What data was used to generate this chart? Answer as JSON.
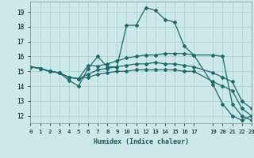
{
  "xlabel": "Humidex (Indice chaleur)",
  "bg_color": "#cce8e8",
  "grid_color": "#aacccc",
  "line_color": "#1a6b6b",
  "lines": [
    {
      "x": [
        0,
        1,
        2,
        3,
        4,
        5,
        6,
        7,
        8,
        9,
        10,
        11,
        12,
        13,
        14,
        15,
        16,
        17,
        19,
        20,
        21,
        22,
        23
      ],
      "y": [
        15.3,
        15.2,
        15.0,
        14.9,
        14.4,
        14.0,
        15.2,
        16.0,
        15.3,
        15.3,
        18.1,
        18.1,
        19.3,
        19.1,
        18.5,
        18.3,
        16.7,
        16.1,
        14.1,
        12.8,
        12.0,
        11.7,
        12.0
      ]
    },
    {
      "x": [
        0,
        1,
        2,
        3,
        4,
        5,
        6,
        7,
        8,
        9,
        10,
        11,
        12,
        13,
        14,
        15,
        16,
        17,
        19,
        20,
        21,
        22,
        23
      ],
      "y": [
        15.3,
        15.2,
        15.0,
        14.9,
        14.6,
        14.5,
        15.4,
        15.35,
        15.5,
        15.7,
        15.9,
        16.0,
        16.1,
        16.1,
        16.2,
        16.2,
        16.2,
        16.1,
        16.1,
        16.0,
        12.8,
        12.0,
        11.7
      ]
    },
    {
      "x": [
        0,
        1,
        2,
        3,
        4,
        5,
        6,
        7,
        8,
        9,
        10,
        11,
        12,
        13,
        14,
        15,
        16,
        17,
        19,
        20,
        21,
        22,
        23
      ],
      "y": [
        15.3,
        15.2,
        15.0,
        14.9,
        14.6,
        14.5,
        14.8,
        15.1,
        15.2,
        15.3,
        15.4,
        15.5,
        15.5,
        15.6,
        15.5,
        15.5,
        15.4,
        15.3,
        14.9,
        14.6,
        14.3,
        13.0,
        12.5
      ]
    },
    {
      "x": [
        0,
        1,
        2,
        3,
        4,
        5,
        6,
        7,
        8,
        9,
        10,
        11,
        12,
        13,
        14,
        15,
        16,
        17,
        19,
        20,
        21,
        22,
        23
      ],
      "y": [
        15.3,
        15.2,
        15.0,
        14.9,
        14.6,
        14.5,
        14.6,
        14.8,
        14.9,
        15.0,
        15.0,
        15.1,
        15.1,
        15.1,
        15.1,
        15.1,
        15.0,
        15.0,
        14.3,
        14.0,
        13.7,
        12.5,
        12.0
      ]
    }
  ],
  "xlim": [
    0,
    23
  ],
  "ylim": [
    11.5,
    19.7
  ],
  "xticks": [
    0,
    1,
    2,
    3,
    4,
    5,
    6,
    7,
    8,
    9,
    10,
    11,
    12,
    13,
    14,
    15,
    16,
    17,
    19,
    20,
    21,
    22,
    23
  ],
  "yticks": [
    12,
    13,
    14,
    15,
    16,
    17,
    18,
    19
  ],
  "marker": "D",
  "marker_size": 2.0,
  "linewidth": 0.9
}
